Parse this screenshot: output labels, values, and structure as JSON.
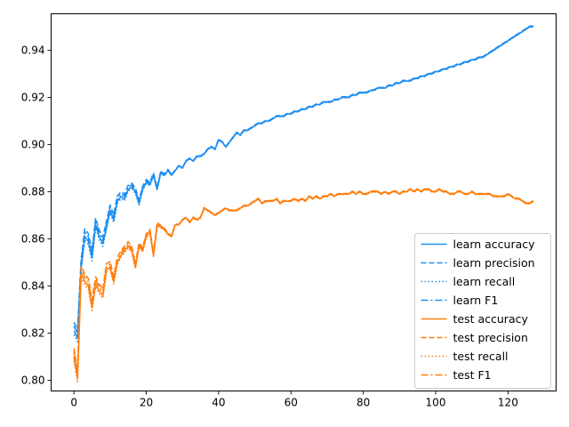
{
  "chart_data": {
    "type": "line",
    "title": "",
    "xlabel": "",
    "ylabel": "",
    "xlim": [
      -6.3,
      133.3
    ],
    "ylim": [
      0.7955,
      0.9555
    ],
    "x_ticks": [
      0,
      20,
      40,
      60,
      80,
      100,
      120
    ],
    "y_ticks": [
      0.8,
      0.82,
      0.84,
      0.86,
      0.88,
      0.9,
      0.92,
      0.94
    ],
    "grid": false,
    "legend_position": "lower-right",
    "colors": {
      "learn": "#1f8ff0",
      "test": "#ff7f0e"
    },
    "learn_values": [
      0.821,
      0.818,
      0.848,
      0.861,
      0.859,
      0.852,
      0.866,
      0.861,
      0.858,
      0.865,
      0.872,
      0.868,
      0.876,
      0.878,
      0.877,
      0.881,
      0.882,
      0.88,
      0.875,
      0.881,
      0.884,
      0.883,
      0.887,
      0.881,
      0.888,
      0.887,
      0.889,
      0.887,
      0.889,
      0.891,
      0.89,
      0.893,
      0.894,
      0.893,
      0.895,
      0.895,
      0.896,
      0.898,
      0.899,
      0.898,
      0.902,
      0.901,
      0.899,
      0.901,
      0.903,
      0.905,
      0.904,
      0.906,
      0.906,
      0.907,
      0.908,
      0.909,
      0.909,
      0.91,
      0.91,
      0.911,
      0.912,
      0.912,
      0.912,
      0.913,
      0.913,
      0.914,
      0.914,
      0.915,
      0.915,
      0.916,
      0.916,
      0.917,
      0.917,
      0.918,
      0.918,
      0.918,
      0.919,
      0.919,
      0.92,
      0.92,
      0.92,
      0.921,
      0.921,
      0.922,
      0.922,
      0.922,
      0.923,
      0.923,
      0.924,
      0.924,
      0.924,
      0.925,
      0.925,
      0.926,
      0.926,
      0.927,
      0.927,
      0.927,
      0.928,
      0.928,
      0.929,
      0.929,
      0.93,
      0.93,
      0.931,
      0.931,
      0.932,
      0.932,
      0.933,
      0.933,
      0.934,
      0.934,
      0.935,
      0.935,
      0.936,
      0.936,
      0.937,
      0.937,
      0.938,
      0.939,
      0.94,
      0.941,
      0.942,
      0.943,
      0.944,
      0.945,
      0.946,
      0.947,
      0.948,
      0.949,
      0.95,
      0.95
    ],
    "test_values": [
      0.81,
      0.801,
      0.845,
      0.842,
      0.84,
      0.831,
      0.841,
      0.838,
      0.836,
      0.847,
      0.848,
      0.842,
      0.85,
      0.853,
      0.855,
      0.857,
      0.855,
      0.848,
      0.857,
      0.855,
      0.861,
      0.863,
      0.853,
      0.866,
      0.865,
      0.864,
      0.862,
      0.861,
      0.866,
      0.866,
      0.868,
      0.869,
      0.867,
      0.869,
      0.868,
      0.869,
      0.873,
      0.872,
      0.871,
      0.87,
      0.871,
      0.872,
      0.873,
      0.872,
      0.872,
      0.872,
      0.873,
      0.874,
      0.874,
      0.875,
      0.876,
      0.877,
      0.875,
      0.876,
      0.876,
      0.876,
      0.877,
      0.875,
      0.876,
      0.876,
      0.876,
      0.877,
      0.876,
      0.877,
      0.876,
      0.878,
      0.877,
      0.878,
      0.877,
      0.878,
      0.878,
      0.879,
      0.878,
      0.879,
      0.879,
      0.879,
      0.879,
      0.88,
      0.879,
      0.88,
      0.879,
      0.879,
      0.88,
      0.88,
      0.88,
      0.879,
      0.88,
      0.879,
      0.88,
      0.88,
      0.879,
      0.88,
      0.88,
      0.881,
      0.88,
      0.881,
      0.88,
      0.881,
      0.881,
      0.88,
      0.88,
      0.881,
      0.88,
      0.88,
      0.879,
      0.879,
      0.88,
      0.88,
      0.879,
      0.879,
      0.88,
      0.879,
      0.879,
      0.879,
      0.879,
      0.879,
      0.878,
      0.878,
      0.878,
      0.878,
      0.879,
      0.878,
      0.877,
      0.877,
      0.876,
      0.875,
      0.875,
      0.876
    ],
    "series": [
      {
        "name": "learn accuracy",
        "group": "learn",
        "dash": "solid"
      },
      {
        "name": "learn precision",
        "group": "learn",
        "dash": "dashed"
      },
      {
        "name": "learn recall",
        "group": "learn",
        "dash": "dotted"
      },
      {
        "name": "learn F1",
        "group": "learn",
        "dash": "dashdot"
      },
      {
        "name": "test accuracy",
        "group": "test",
        "dash": "solid"
      },
      {
        "name": "test precision",
        "group": "test",
        "dash": "dashed"
      },
      {
        "name": "test recall",
        "group": "test",
        "dash": "dotted"
      },
      {
        "name": "test F1",
        "group": "test",
        "dash": "dashdot"
      }
    ]
  }
}
